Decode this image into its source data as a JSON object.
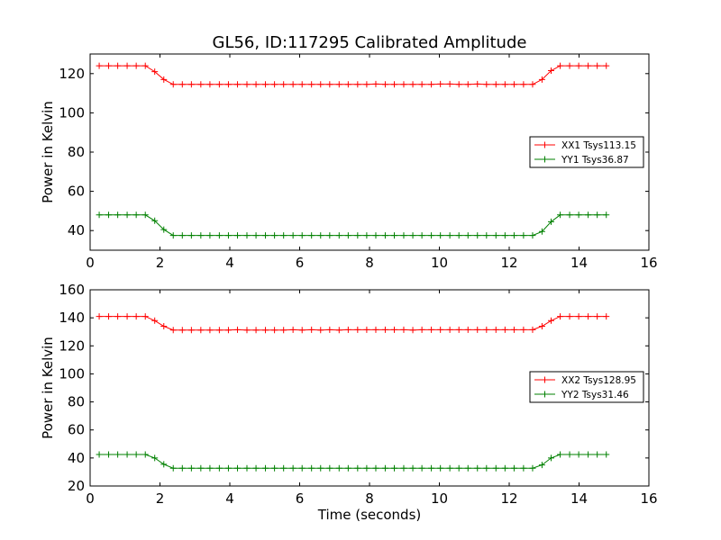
{
  "figure": {
    "title": "GL56, ID:117295 Calibrated Amplitude",
    "xlabel": "Time (seconds)"
  },
  "chart_data": [
    {
      "type": "line",
      "title": "GL56, ID:117295 Calibrated Amplitude",
      "xlabel": "",
      "ylabel": "Power in Kelvin",
      "xlim": [
        0,
        16
      ],
      "ylim": [
        30,
        130
      ],
      "xticks": [
        "0",
        "2",
        "4",
        "6",
        "8",
        "10",
        "12",
        "14",
        "16"
      ],
      "yticks": [
        "40",
        "60",
        "80",
        "100",
        "120"
      ],
      "grid": false,
      "legend_position": "center-right",
      "x": [
        0.26,
        0.53,
        0.79,
        1.06,
        1.32,
        1.58,
        1.85,
        2.11,
        2.38,
        2.64,
        2.9,
        3.17,
        3.43,
        3.7,
        3.96,
        4.22,
        4.49,
        4.75,
        5.02,
        5.28,
        5.54,
        5.81,
        6.07,
        6.34,
        6.6,
        6.86,
        7.13,
        7.39,
        7.66,
        7.92,
        8.18,
        8.45,
        8.71,
        8.98,
        9.24,
        9.5,
        9.77,
        10.03,
        10.3,
        10.56,
        10.82,
        11.09,
        11.35,
        11.62,
        11.88,
        12.14,
        12.41,
        12.67,
        12.94,
        13.2,
        13.46,
        13.73,
        13.99,
        14.26,
        14.52,
        14.78
      ],
      "series": [
        {
          "name": "XX1 Tsys113.15",
          "color": "#ff0000",
          "values": [
            124,
            124,
            124,
            124,
            124,
            124,
            121,
            117,
            114.5,
            114.5,
            114.5,
            114.5,
            114.5,
            114.5,
            114.5,
            114.5,
            114.5,
            114.5,
            114.5,
            114.5,
            114.5,
            114.5,
            114.5,
            114.5,
            114.5,
            114.5,
            114.5,
            114.5,
            114.5,
            114.5,
            114.7,
            114.5,
            114.5,
            114.5,
            114.5,
            114.5,
            114.5,
            114.7,
            114.7,
            114.5,
            114.5,
            114.7,
            114.5,
            114.5,
            114.5,
            114.5,
            114.5,
            114.5,
            117,
            121.5,
            124,
            124,
            124,
            124,
            124,
            124
          ]
        },
        {
          "name": "YY1 Tsys36.87",
          "color": "#008000",
          "values": [
            48,
            48,
            48,
            48,
            48,
            48,
            45,
            40.5,
            37.5,
            37.5,
            37.5,
            37.5,
            37.5,
            37.5,
            37.5,
            37.5,
            37.5,
            37.5,
            37.5,
            37.5,
            37.5,
            37.5,
            37.5,
            37.5,
            37.5,
            37.5,
            37.5,
            37.5,
            37.5,
            37.5,
            37.5,
            37.5,
            37.5,
            37.5,
            37.5,
            37.5,
            37.5,
            37.5,
            37.5,
            37.5,
            37.5,
            37.5,
            37.5,
            37.5,
            37.5,
            37.5,
            37.5,
            37.5,
            39.5,
            44.5,
            48,
            48,
            48,
            48,
            48,
            48
          ]
        }
      ]
    },
    {
      "type": "line",
      "title": "",
      "xlabel": "Time (seconds)",
      "ylabel": "Power in Kelvin",
      "xlim": [
        0,
        16
      ],
      "ylim": [
        20,
        160
      ],
      "xticks": [
        "0",
        "2",
        "4",
        "6",
        "8",
        "10",
        "12",
        "14",
        "16"
      ],
      "yticks": [
        "20",
        "40",
        "60",
        "80",
        "100",
        "120",
        "140",
        "160"
      ],
      "grid": false,
      "legend_position": "center-right",
      "x": [
        0.26,
        0.53,
        0.79,
        1.06,
        1.32,
        1.58,
        1.85,
        2.11,
        2.38,
        2.64,
        2.9,
        3.17,
        3.43,
        3.7,
        3.96,
        4.22,
        4.49,
        4.75,
        5.02,
        5.28,
        5.54,
        5.81,
        6.07,
        6.34,
        6.6,
        6.86,
        7.13,
        7.39,
        7.66,
        7.92,
        8.18,
        8.45,
        8.71,
        8.98,
        9.24,
        9.5,
        9.77,
        10.03,
        10.3,
        10.56,
        10.82,
        11.09,
        11.35,
        11.62,
        11.88,
        12.14,
        12.41,
        12.67,
        12.94,
        13.2,
        13.46,
        13.73,
        13.99,
        14.26,
        14.52,
        14.78
      ],
      "series": [
        {
          "name": "XX2 Tsys128.95",
          "color": "#ff0000",
          "values": [
            141,
            141,
            141,
            141,
            141,
            141,
            138,
            134,
            131.3,
            131.3,
            131.3,
            131.3,
            131.3,
            131.3,
            131.3,
            131.5,
            131.3,
            131.3,
            131.3,
            131.3,
            131.3,
            131.5,
            131.3,
            131.5,
            131.3,
            131.5,
            131.3,
            131.5,
            131.5,
            131.5,
            131.5,
            131.5,
            131.5,
            131.5,
            131.3,
            131.5,
            131.5,
            131.5,
            131.5,
            131.5,
            131.5,
            131.5,
            131.5,
            131.5,
            131.5,
            131.5,
            131.5,
            131.5,
            134,
            138,
            141,
            141,
            141,
            141,
            141,
            141
          ]
        },
        {
          "name": "YY2 Tsys31.46",
          "color": "#008000",
          "values": [
            42.5,
            42.5,
            42.5,
            42.5,
            42.5,
            42.5,
            40,
            35.5,
            32.7,
            32.7,
            32.7,
            32.7,
            32.7,
            32.7,
            32.7,
            32.7,
            32.7,
            32.7,
            32.7,
            32.7,
            32.7,
            32.7,
            32.7,
            32.7,
            32.7,
            32.7,
            32.7,
            32.7,
            32.7,
            32.7,
            32.7,
            32.7,
            32.7,
            32.7,
            32.7,
            32.7,
            32.7,
            32.7,
            32.7,
            32.7,
            32.7,
            32.7,
            32.7,
            32.7,
            32.7,
            32.7,
            32.7,
            32.7,
            35,
            40,
            42.5,
            42.5,
            42.5,
            42.5,
            42.5,
            42.5
          ]
        }
      ]
    }
  ]
}
